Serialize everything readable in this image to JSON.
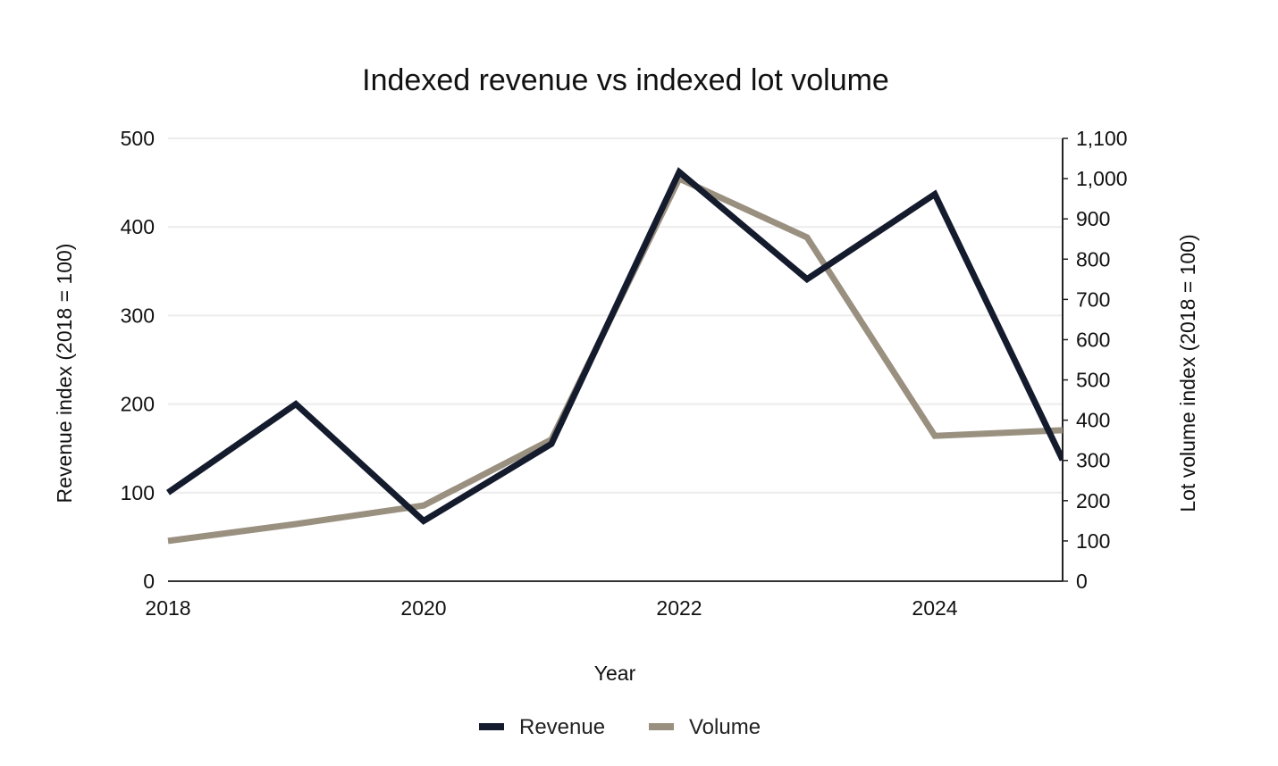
{
  "chart_data": {
    "type": "line",
    "title": "Indexed revenue vs indexed lot volume",
    "xlabel": "Year",
    "ylabel": "Revenue index (2018 = 100)",
    "y2label": "Lot volume index (2018 = 100)",
    "x": [
      2018,
      2019,
      2020,
      2021,
      2022,
      2023,
      2024,
      2025
    ],
    "xlim": [
      2018,
      2025
    ],
    "xticks": [
      2018,
      2020,
      2022,
      2024
    ],
    "xtick_labels": [
      "2018",
      "2020",
      "2022",
      "2024"
    ],
    "ylim": [
      0,
      500
    ],
    "yticks": [
      0,
      100,
      200,
      300,
      400,
      500
    ],
    "ytick_labels": [
      "0",
      "100",
      "200",
      "300",
      "400",
      "500"
    ],
    "y2lim": [
      0,
      1100
    ],
    "y2ticks": [
      0,
      100,
      200,
      300,
      400,
      500,
      600,
      700,
      800,
      900,
      1000,
      1100
    ],
    "y2tick_labels": [
      "0",
      "100",
      "200",
      "300",
      "400",
      "500",
      "600",
      "700",
      "800",
      "900",
      "1,000",
      "1,100"
    ],
    "grid": true,
    "legend_position": "bottom-center",
    "series": [
      {
        "name": "Revenue",
        "axis": "left",
        "color": "#141b2d",
        "values": [
          100,
          200,
          68,
          155,
          462,
          341,
          437,
          137
        ]
      },
      {
        "name": "Volume",
        "axis": "right",
        "color": "#9a9080",
        "values": [
          100,
          142,
          188,
          352,
          1000,
          854,
          361,
          375
        ]
      }
    ]
  }
}
